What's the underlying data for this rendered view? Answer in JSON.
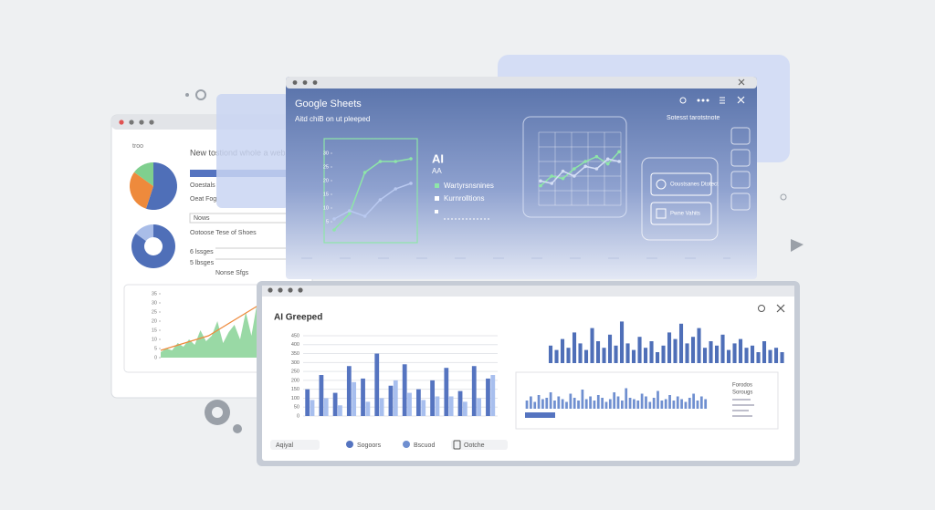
{
  "back_window": {
    "menu": "troo",
    "title": "New tostiond whole a webs",
    "rows": [
      "Ooestals",
      "Oeat Fog",
      "Nows"
    ],
    "section": "Ootoose Tese of Shoes",
    "items": [
      "6 lssges",
      "5 lbsges"
    ],
    "caption": "Nonse Sfgs",
    "pie": {
      "type": "pie",
      "values": [
        55,
        30,
        15
      ],
      "colors": [
        "#4f6fb8",
        "#ee8a3c",
        "#7fcf8e"
      ]
    },
    "donut": {
      "type": "donut",
      "values": [
        85,
        15
      ],
      "colors": [
        "#4f6fb8",
        "#a9bde8"
      ]
    },
    "chart": {
      "type": "area",
      "values": [
        3,
        5,
        4,
        8,
        6,
        10,
        7,
        15,
        9,
        12,
        20,
        8,
        14,
        18,
        10,
        25,
        12,
        30,
        9,
        14
      ],
      "color": "#7fcf8e",
      "trend": {
        "values": [
          4,
          6,
          8,
          10,
          12,
          16,
          20,
          24,
          28,
          32
        ],
        "color": "#ee8a3c"
      },
      "ylim": [
        0,
        35
      ],
      "yticks": [
        0,
        5,
        10,
        15,
        20,
        25,
        30,
        35
      ]
    }
  },
  "middle_window": {
    "title": "Google Sheets",
    "subtitle": "Aitd chiB on ut pleeped",
    "heading": "AI",
    "subheading": "AA",
    "legend": [
      "Wartyrsnsnines",
      "Kurnrolltions"
    ],
    "right_label": "Sotesst tarotstnote",
    "cards": [
      "Ooustsanes Dtotect",
      "Pwne Vahits"
    ],
    "chart": {
      "type": "line",
      "series": [
        {
          "color": "#8ee6a8",
          "values": [
            2,
            8,
            23,
            27,
            27,
            28
          ]
        },
        {
          "color": "#b9c9f0",
          "values": [
            6,
            9,
            7,
            13,
            17,
            19
          ]
        }
      ],
      "ylim": [
        0,
        32
      ],
      "yticks": [
        5,
        10,
        15,
        20,
        25,
        30
      ]
    },
    "mini_chart": {
      "type": "line",
      "series": [
        {
          "color": "#8ee6a8",
          "values": [
            8,
            12,
            11,
            15,
            18,
            20,
            17,
            22
          ]
        },
        {
          "color": "#d4def5",
          "values": [
            10,
            9,
            14,
            12,
            16,
            15,
            19,
            18
          ]
        }
      ],
      "ylim": [
        0,
        30
      ]
    }
  },
  "front_window": {
    "title": "AI Greeped",
    "chart": {
      "type": "bar",
      "series": [
        {
          "color": "#5574c0",
          "values": [
            150,
            230,
            130,
            280,
            210,
            350,
            170,
            290,
            150,
            200,
            270,
            140,
            280,
            210
          ]
        },
        {
          "color": "#a8bfee",
          "values": [
            90,
            100,
            60,
            190,
            80,
            100,
            200,
            130,
            90,
            110,
            110,
            80,
            100,
            230
          ]
        }
      ],
      "ylim": [
        0,
        450
      ],
      "yticks": [
        0,
        50,
        100,
        150,
        200,
        250,
        300,
        350,
        400,
        450
      ]
    },
    "side_chart": {
      "type": "bar",
      "color": "#4f6fb8",
      "ylim": [
        0,
        100
      ],
      "values": [
        40,
        30,
        55,
        35,
        70,
        45,
        30,
        80,
        50,
        35,
        65,
        40,
        95,
        45,
        30,
        60,
        35,
        50,
        25,
        40,
        70,
        55,
        90,
        45,
        60,
        80,
        35,
        50,
        40,
        65,
        30,
        45,
        55,
        35,
        40,
        25,
        50,
        30,
        35,
        25
      ]
    },
    "strip_chart": {
      "type": "bar",
      "color": "#6f8fd0",
      "ylim": [
        0,
        100
      ],
      "values": [
        30,
        45,
        25,
        50,
        35,
        40,
        60,
        30,
        45,
        35,
        25,
        55,
        40,
        30,
        70,
        35,
        45,
        30,
        50,
        40,
        25,
        35,
        60,
        45,
        30,
        75,
        40,
        35,
        30,
        55,
        45,
        25,
        40,
        65,
        30,
        35,
        50,
        30,
        45,
        35,
        25,
        40,
        55,
        30,
        45,
        35
      ]
    },
    "strip_title": "Forodos",
    "strip_subtitle": "Sorougs",
    "tabs": [
      "Aqiyal",
      "Sogoors",
      "Bscuod",
      "Ootche"
    ]
  }
}
